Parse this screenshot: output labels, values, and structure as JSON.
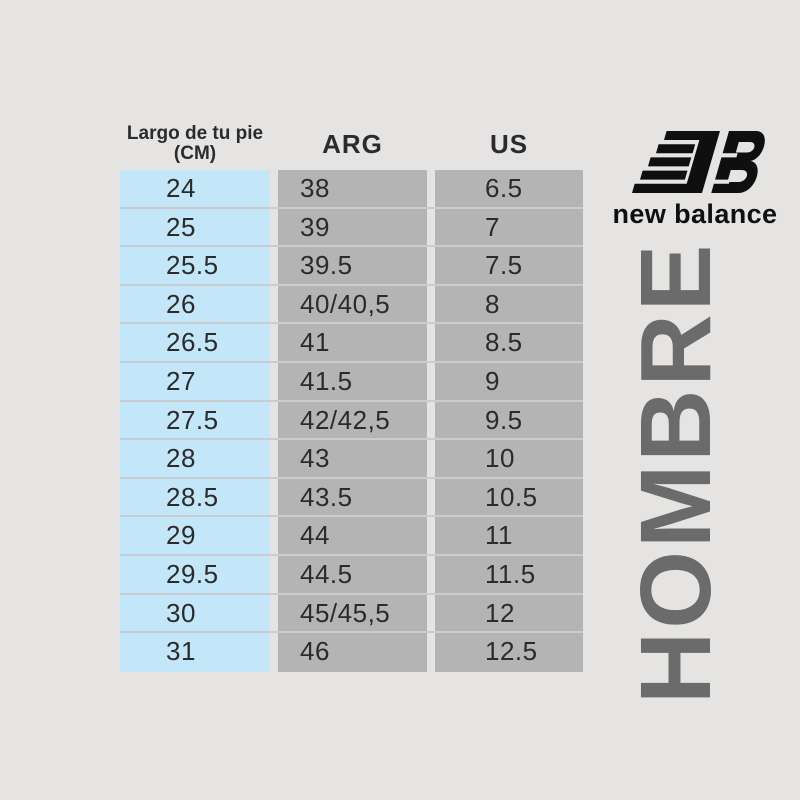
{
  "brand": {
    "wordmark": "new balance",
    "logo_icon": "new-balance-nb-flying-logo"
  },
  "category_label": "HOMBRE",
  "table": {
    "headers": [
      {
        "id": "cm",
        "label": "Largo de tu pie (CM)"
      },
      {
        "id": "arg",
        "label": "ARG"
      },
      {
        "id": "us",
        "label": "US"
      }
    ],
    "rows": [
      {
        "cm": "24",
        "arg": "38",
        "us": "6.5"
      },
      {
        "cm": "25",
        "arg": "39",
        "us": "7"
      },
      {
        "cm": "25.5",
        "arg": "39.5",
        "us": "7.5"
      },
      {
        "cm": "26",
        "arg": "40/40,5",
        "us": "8"
      },
      {
        "cm": "26.5",
        "arg": "41",
        "us": "8.5"
      },
      {
        "cm": "27",
        "arg": "41.5",
        "us": "9"
      },
      {
        "cm": "27.5",
        "arg": "42/42,5",
        "us": "9.5"
      },
      {
        "cm": "28",
        "arg": "43",
        "us": "10"
      },
      {
        "cm": "28.5",
        "arg": "43.5",
        "us": "10.5"
      },
      {
        "cm": "29",
        "arg": "44",
        "us": "11"
      },
      {
        "cm": "29.5",
        "arg": "44.5",
        "us": "11.5"
      },
      {
        "cm": "30",
        "arg": "45/45,5",
        "us": "12"
      },
      {
        "cm": "31",
        "arg": "46",
        "us": "12.5"
      }
    ]
  },
  "chart_data": {
    "type": "table",
    "title": "New Balance HOMBRE size conversion",
    "columns": [
      "Largo de tu pie (CM)",
      "ARG",
      "US"
    ],
    "rows": [
      [
        "24",
        "38",
        "6.5"
      ],
      [
        "25",
        "39",
        "7"
      ],
      [
        "25.5",
        "39.5",
        "7.5"
      ],
      [
        "26",
        "40/40,5",
        "8"
      ],
      [
        "26.5",
        "41",
        "8.5"
      ],
      [
        "27",
        "41.5",
        "9"
      ],
      [
        "27.5",
        "42/42,5",
        "9.5"
      ],
      [
        "28",
        "43",
        "10"
      ],
      [
        "28.5",
        "43.5",
        "10.5"
      ],
      [
        "29",
        "44",
        "11"
      ],
      [
        "29.5",
        "44.5",
        "11.5"
      ],
      [
        "30",
        "45/45,5",
        "12"
      ],
      [
        "31",
        "46",
        "12.5"
      ]
    ]
  },
  "colors": {
    "background": "#e5e4e3",
    "cm_column": "#c4e6f9",
    "size_columns": "#b4b4b4",
    "row_divider": "#c9cdd0",
    "text": "#2b2b2b",
    "category_text": "#6b6b6b",
    "logo": "#0f0f0f"
  }
}
